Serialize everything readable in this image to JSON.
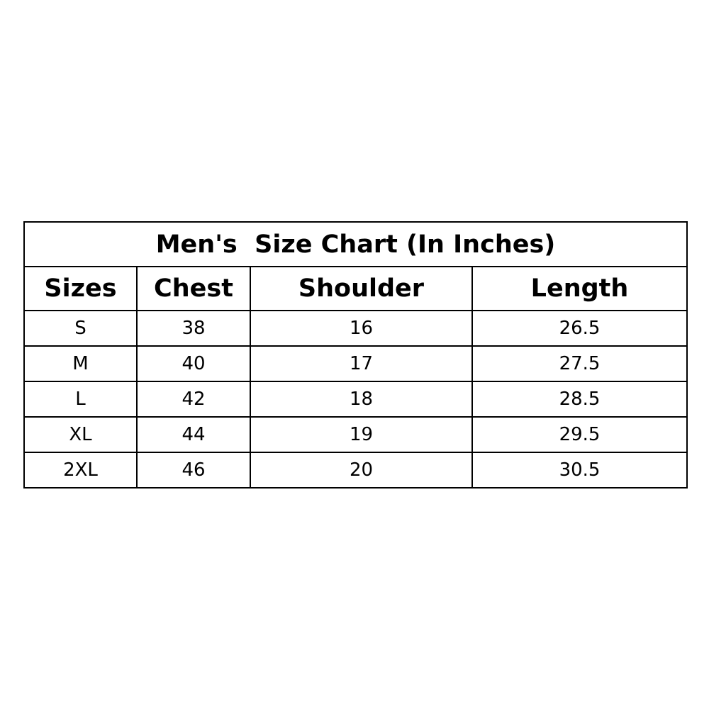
{
  "title": "Men's  Size Chart (In Inches)",
  "headers": [
    "Sizes",
    "Chest",
    "Shoulder",
    "Length"
  ],
  "rows": [
    [
      "S",
      "38",
      "16",
      "26.5"
    ],
    [
      "M",
      "40",
      "17",
      "27.5"
    ],
    [
      "L",
      "42",
      "18",
      "28.5"
    ],
    [
      "XL",
      "44",
      "19",
      "29.5"
    ],
    [
      "2XL",
      "46",
      "20",
      "30.5"
    ]
  ]
}
